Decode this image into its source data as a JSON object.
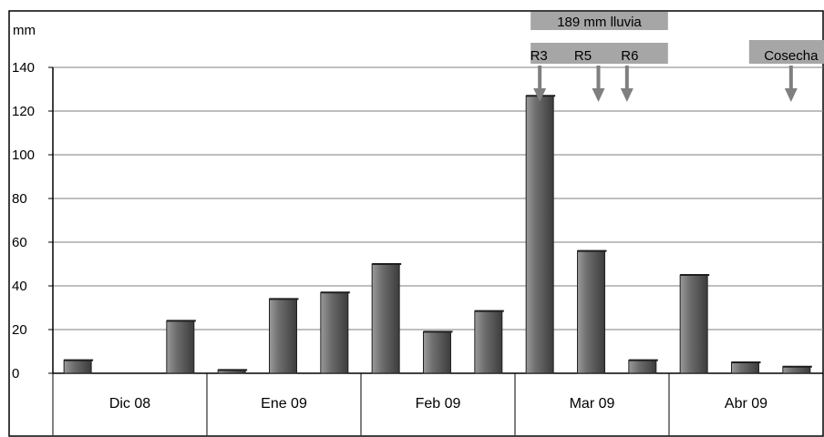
{
  "chart_data": {
    "type": "bar",
    "ylabel": "mm",
    "ylim": [
      0,
      140
    ],
    "yticks": [
      0,
      20,
      40,
      60,
      80,
      100,
      120,
      140
    ],
    "grid": true,
    "legend": "none",
    "groups": [
      {
        "label": "Dic 08",
        "values": [
          6,
          0,
          24
        ]
      },
      {
        "label": "Ene 09",
        "values": [
          1.5,
          34,
          37
        ]
      },
      {
        "label": "Feb 09",
        "values": [
          50,
          19,
          28.5
        ]
      },
      {
        "label": "Mar 09",
        "values": [
          127,
          56,
          6
        ]
      },
      {
        "label": "Abr 09",
        "values": [
          45,
          5,
          3
        ]
      }
    ],
    "annotations": {
      "rain_bar_label": "189 mm lluvia",
      "stages": [
        {
          "label": "R3",
          "bar_index": 9
        },
        {
          "label": "R5",
          "bar_index": 10
        },
        {
          "label": "R6",
          "bar_index": 11
        },
        {
          "label": "Cosecha",
          "bar_index": 14
        }
      ]
    },
    "colors": {
      "bar": "#5a5a5a",
      "bar_highlight": "#8a8a8a",
      "annotation_box": "#a6a6a6",
      "arrow": "#7f7f7f",
      "grid": "#7f7f7f",
      "frame": "#000000"
    }
  }
}
